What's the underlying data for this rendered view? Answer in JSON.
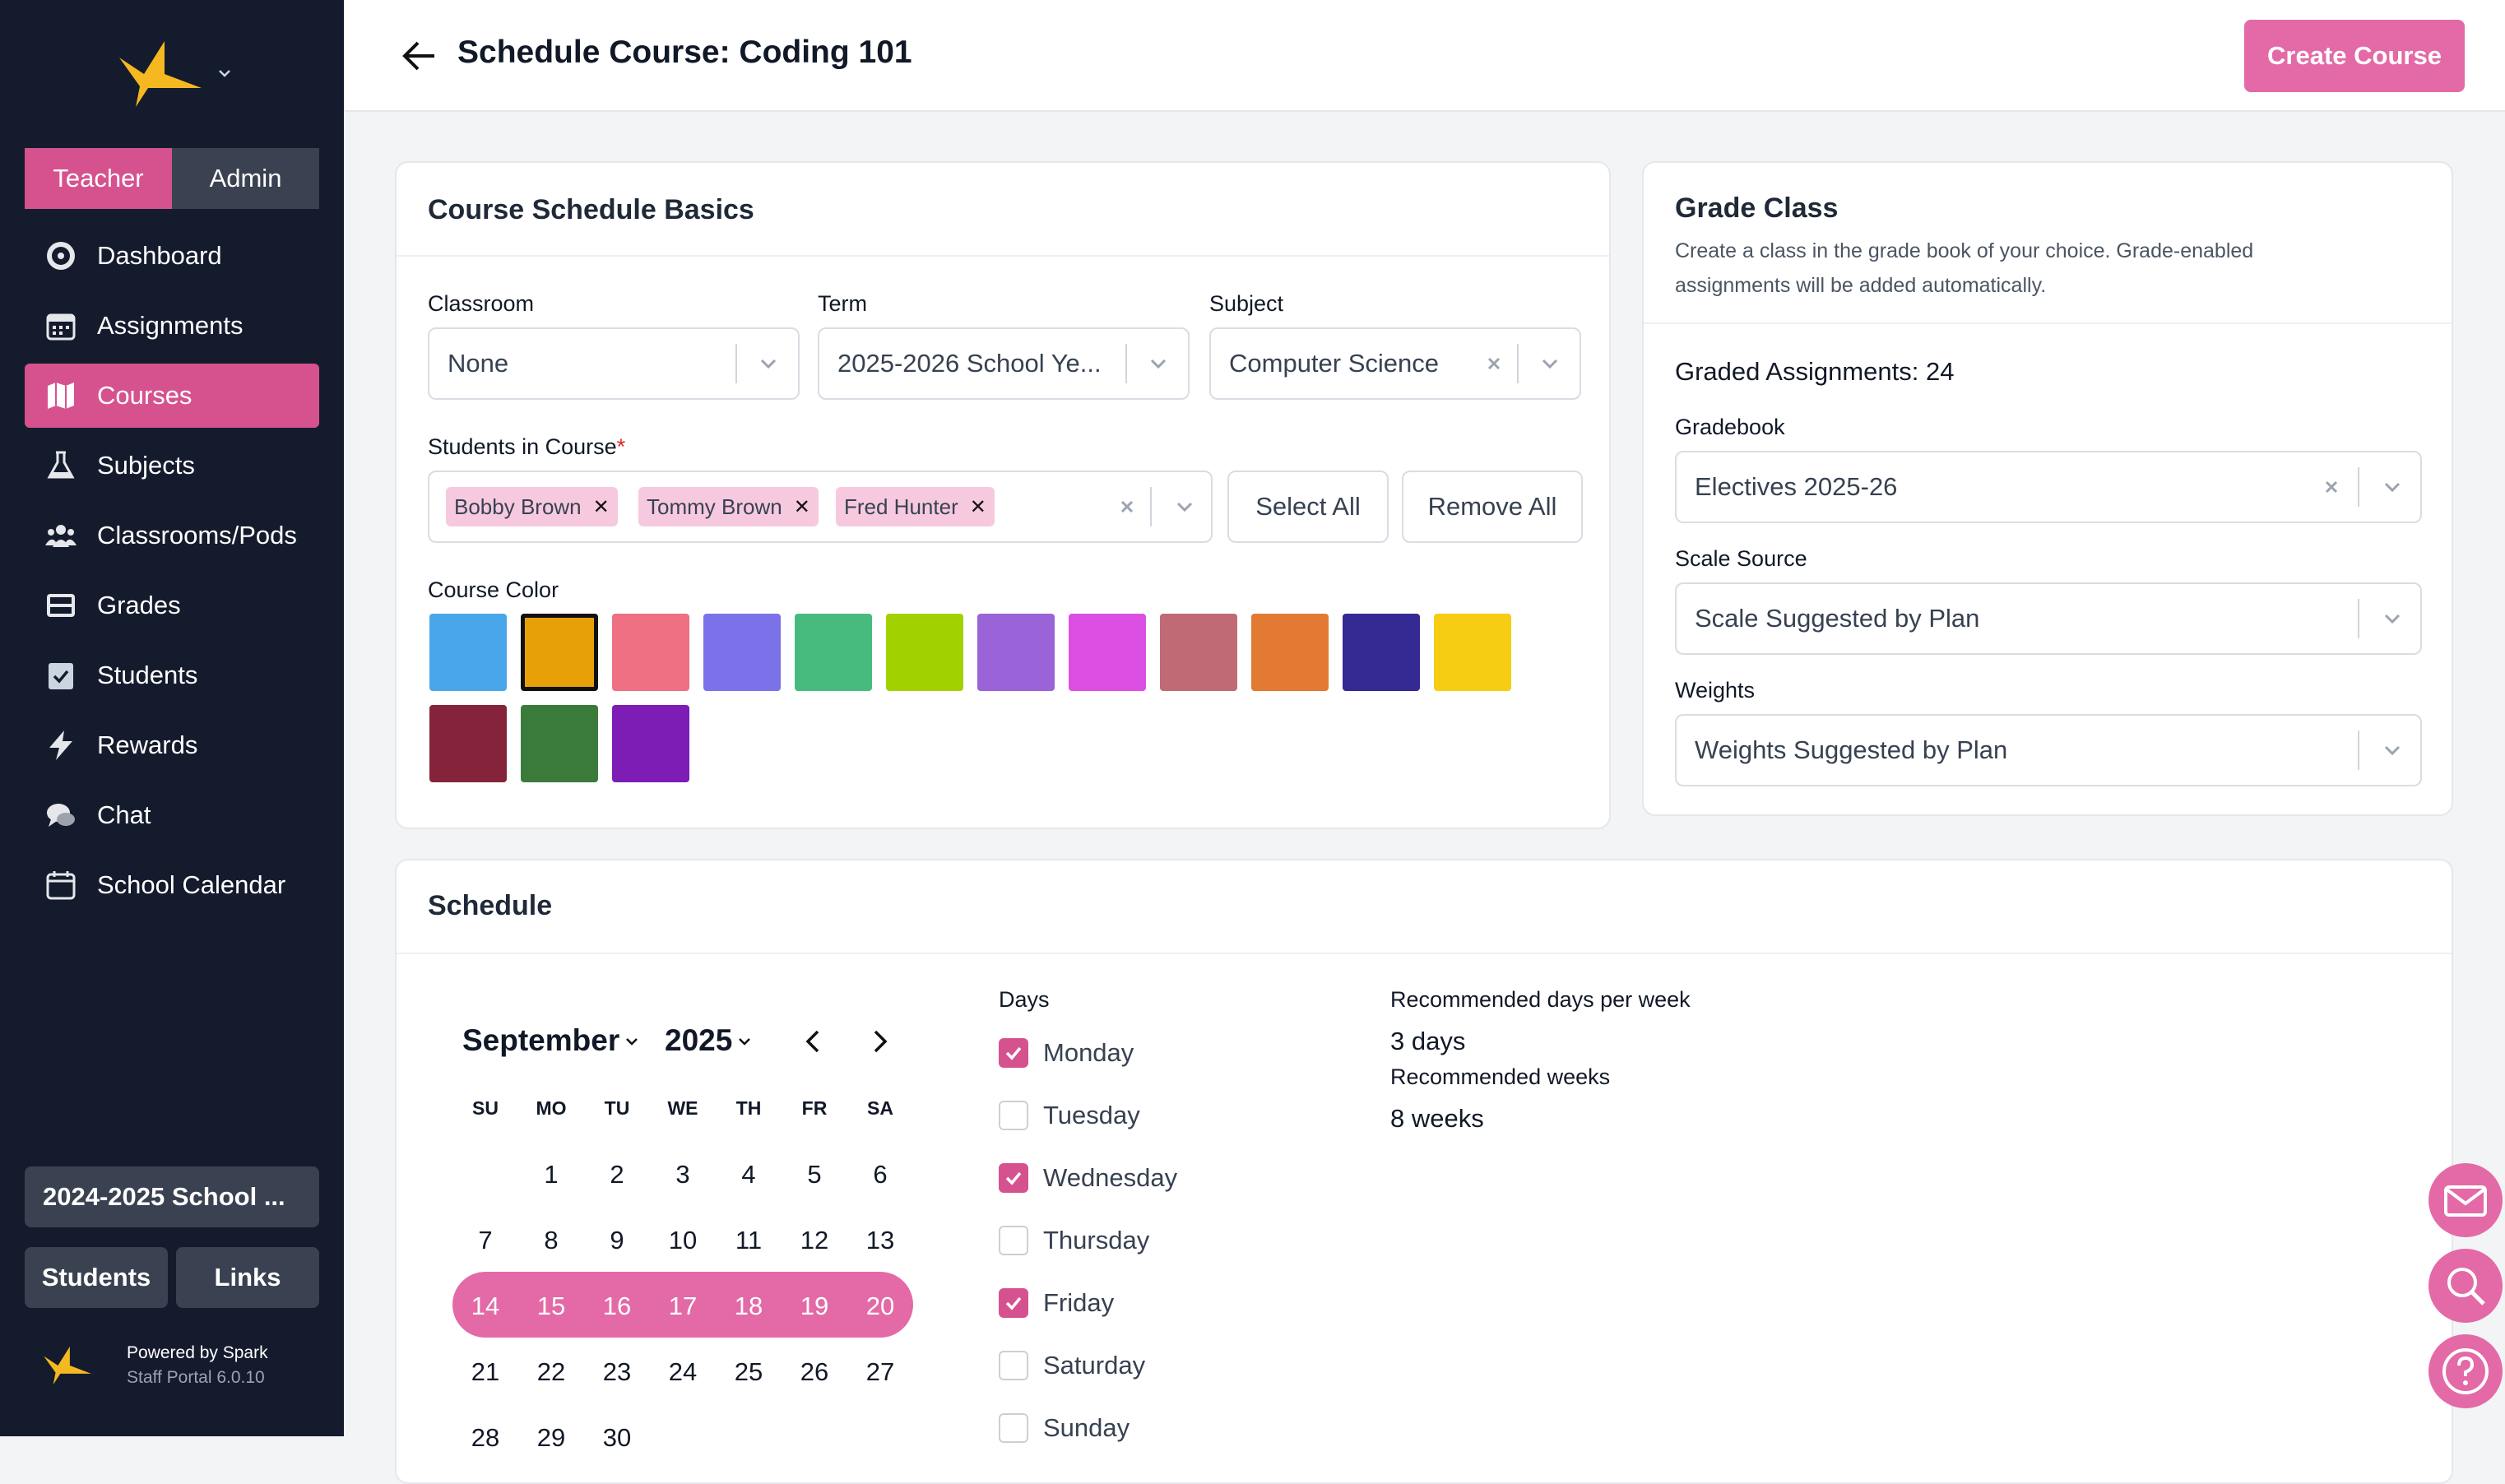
{
  "sidebar": {
    "roles": [
      "Teacher",
      "Admin"
    ],
    "nav": [
      {
        "label": "Dashboard",
        "icon": "dashboard-icon"
      },
      {
        "label": "Assignments",
        "icon": "calendar-grid-icon"
      },
      {
        "label": "Courses",
        "icon": "map-icon"
      },
      {
        "label": "Subjects",
        "icon": "flask-icon"
      },
      {
        "label": "Classrooms/Pods",
        "icon": "users-icon"
      },
      {
        "label": "Grades",
        "icon": "inbox-icon"
      },
      {
        "label": "Students",
        "icon": "clipboard-check-icon"
      },
      {
        "label": "Rewards",
        "icon": "bolt-icon"
      },
      {
        "label": "Chat",
        "icon": "chat-bubbles-icon"
      },
      {
        "label": "School Calendar",
        "icon": "calendar-icon"
      }
    ],
    "year_button": "2024-2025 School ...",
    "students_button": "Students",
    "links_button": "Links",
    "powered_by": "Powered by Spark",
    "version": "Staff Portal 6.0.10"
  },
  "header": {
    "title": "Schedule Course: Coding 101",
    "create_button": "Create Course"
  },
  "basics": {
    "title": "Course Schedule Basics",
    "classroom_label": "Classroom",
    "classroom_value": "None",
    "term_label": "Term",
    "term_value": "2025-2026 School Ye...",
    "subject_label": "Subject",
    "subject_value": "Computer Science",
    "students_label": "Students in Course",
    "required_mark": "*",
    "students": [
      "Bobby Brown",
      "Tommy Brown",
      "Fred Hunter"
    ],
    "select_all": "Select All",
    "remove_all": "Remove All",
    "color_label": "Course Color",
    "colors": [
      "#49a7e9",
      "#e8a008",
      "#ee7082",
      "#7b72ea",
      "#47bb7d",
      "#a2d100",
      "#9a63d8",
      "#dc4fe3",
      "#c06a75",
      "#e27a34",
      "#352994",
      "#f6cd12",
      "#85233a",
      "#3a7b3b",
      "#7d1db5"
    ],
    "selected_color_index": 1
  },
  "grade_class": {
    "title": "Grade Class",
    "description_1": "Create a class in the grade book of your choice. Grade-enabled",
    "description_2": "assignments will be added automatically.",
    "graded_assignments": "Graded Assignments: 24",
    "gradebook_label": "Gradebook",
    "gradebook_value": "Electives 2025-26",
    "scale_label": "Scale Source",
    "scale_value": "Scale Suggested by Plan",
    "weights_label": "Weights",
    "weights_value": "Weights Suggested by Plan"
  },
  "schedule": {
    "title": "Schedule",
    "month": "September",
    "year": "2025",
    "dow": [
      "SU",
      "MO",
      "TU",
      "WE",
      "TH",
      "FR",
      "SA"
    ],
    "weeks": [
      [
        "",
        "1",
        "2",
        "3",
        "4",
        "5",
        "6"
      ],
      [
        "7",
        "8",
        "9",
        "10",
        "11",
        "12",
        "13"
      ],
      [
        "14",
        "15",
        "16",
        "17",
        "18",
        "19",
        "20"
      ],
      [
        "21",
        "22",
        "23",
        "24",
        "25",
        "26",
        "27"
      ],
      [
        "28",
        "29",
        "30",
        "",
        "",
        "",
        ""
      ]
    ],
    "highlighted_week": 2,
    "days_label": "Days",
    "days": [
      {
        "label": "Monday",
        "checked": true
      },
      {
        "label": "Tuesday",
        "checked": false
      },
      {
        "label": "Wednesday",
        "checked": true
      },
      {
        "label": "Thursday",
        "checked": false
      },
      {
        "label": "Friday",
        "checked": true
      },
      {
        "label": "Saturday",
        "checked": false
      },
      {
        "label": "Sunday",
        "checked": false
      }
    ],
    "rec_days_label": "Recommended days per week",
    "rec_days_value": "3 days",
    "rec_weeks_label": "Recommended weeks",
    "rec_weeks_value": "8 weeks"
  },
  "fabs": [
    "mail-icon",
    "search-icon",
    "help-icon"
  ]
}
